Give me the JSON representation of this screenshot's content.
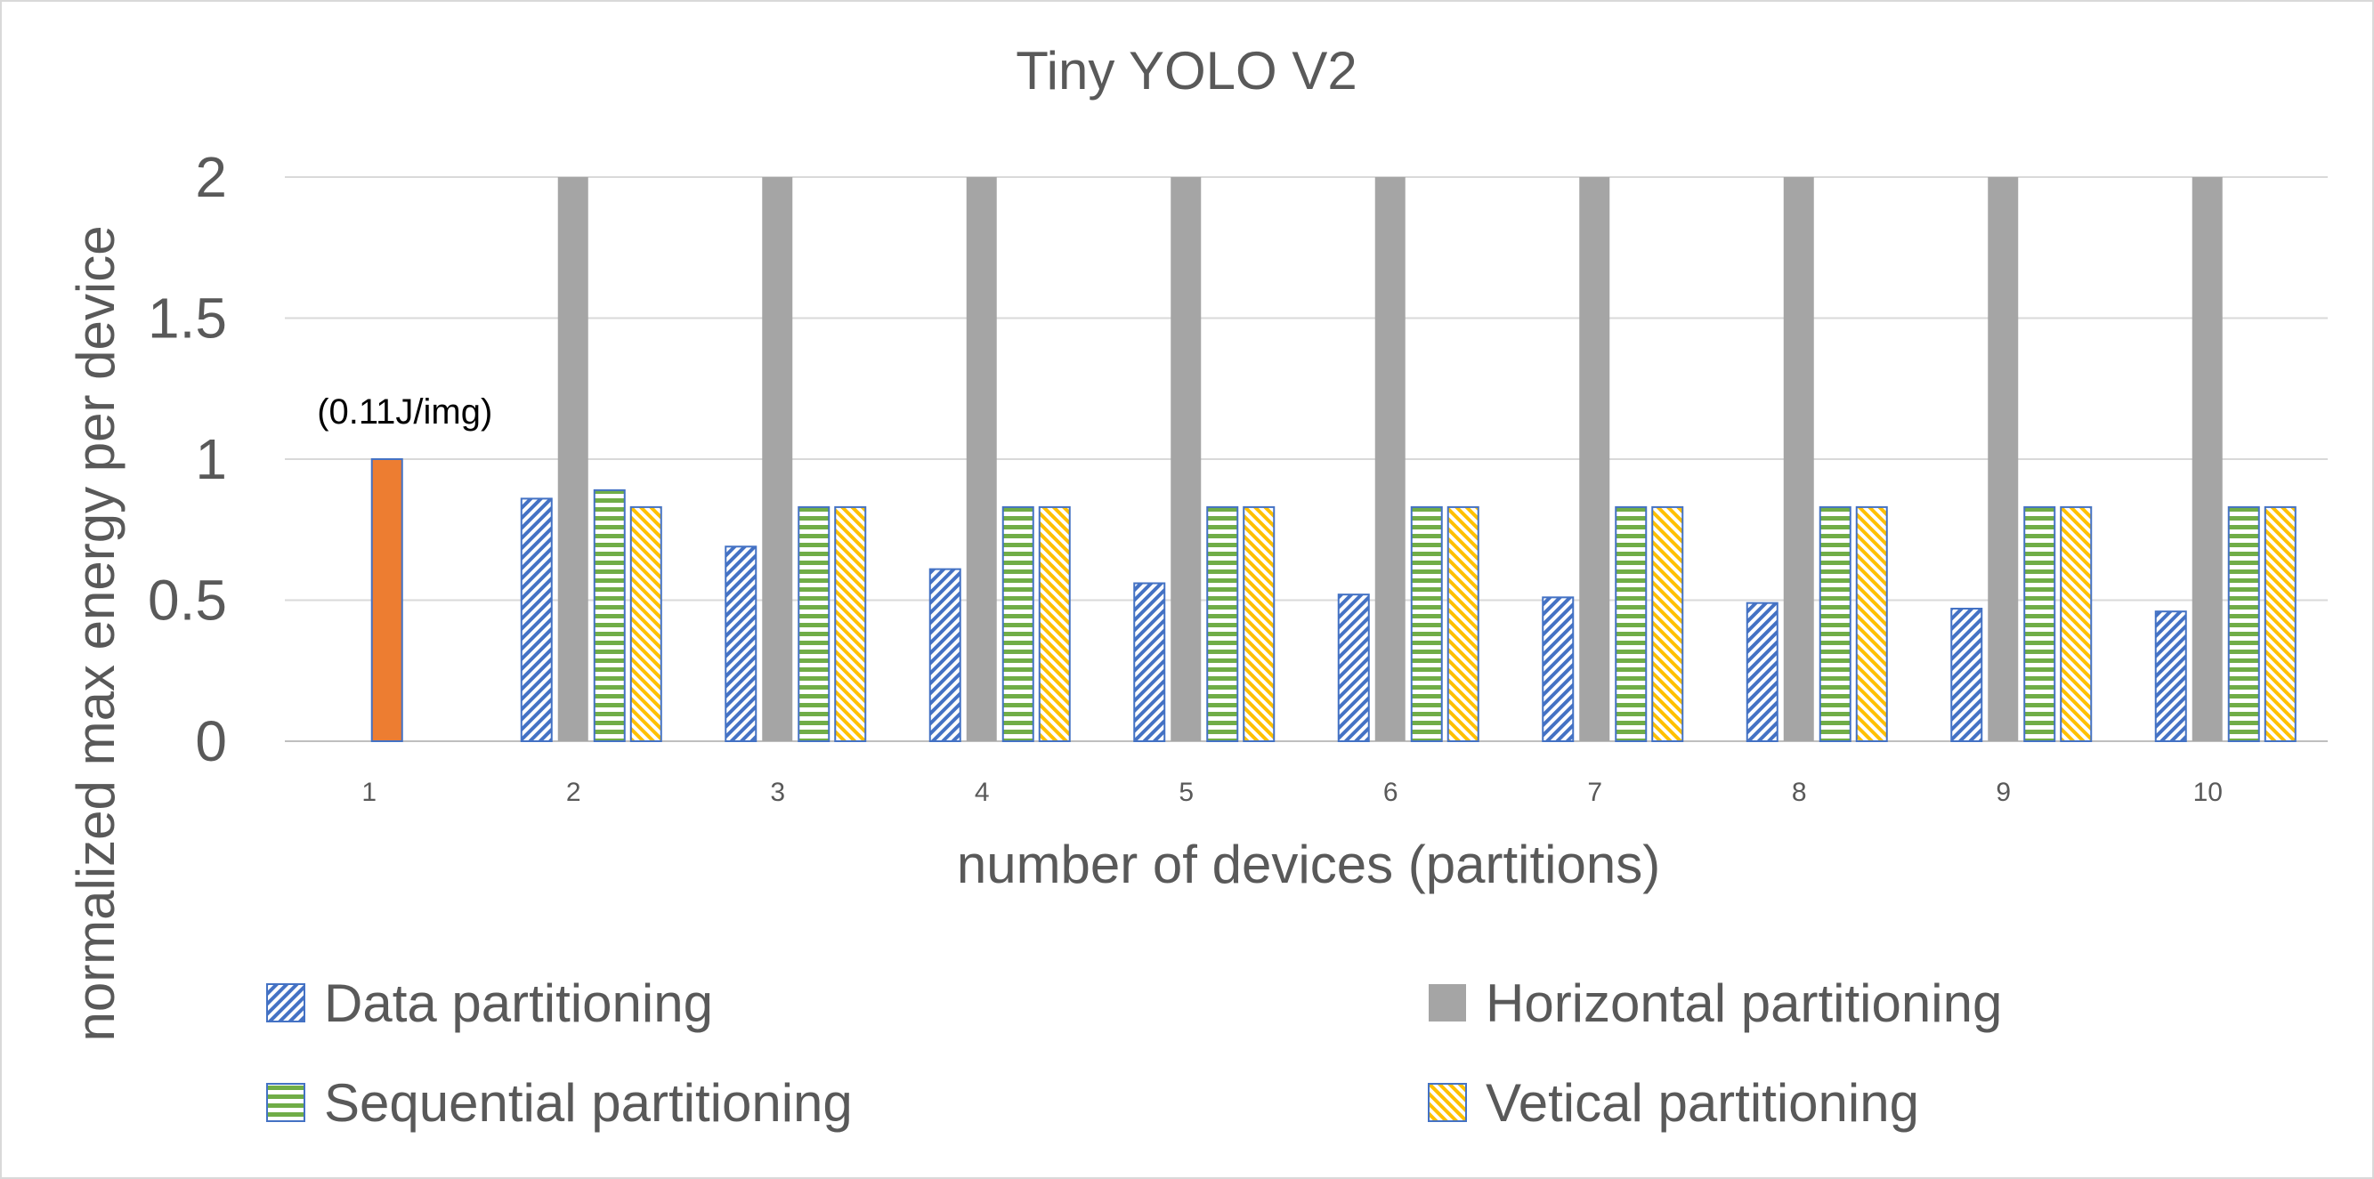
{
  "chart_data": {
    "type": "bar",
    "title": "Tiny YOLO V2",
    "xlabel": "number of devices (partitions)",
    "ylabel": "normalized max energy per device",
    "categories": [
      "1",
      "2",
      "3",
      "4",
      "5",
      "6",
      "7",
      "8",
      "9",
      "10"
    ],
    "ylim": [
      0,
      2
    ],
    "yticks": [
      {
        "value": 0,
        "label": "0"
      },
      {
        "value": 0.5,
        "label": "0.5"
      },
      {
        "value": 1,
        "label": "1"
      },
      {
        "value": 1.5,
        "label": "1.5"
      },
      {
        "value": 2,
        "label": "2"
      }
    ],
    "grid": true,
    "legend_position": "bottom",
    "single_device": {
      "category": "1",
      "value": 1.0,
      "color": "#ED7D31",
      "annotation": "(0.11J/img)"
    },
    "series": [
      {
        "name": "Data partitioning",
        "pattern": "diagonal",
        "color": "#4472C4",
        "values": [
          null,
          0.86,
          0.69,
          0.61,
          0.56,
          0.52,
          0.51,
          0.49,
          0.47,
          0.46
        ]
      },
      {
        "name": "Horizontal partitioning",
        "pattern": "solid",
        "color": "#A5A5A5",
        "values": [
          null,
          2.0,
          2.0,
          2.0,
          2.0,
          2.0,
          2.0,
          2.0,
          2.0,
          2.0
        ]
      },
      {
        "name": "Sequential partitioning",
        "pattern": "horizontal",
        "color": "#70AD47",
        "values": [
          null,
          0.89,
          0.83,
          0.83,
          0.83,
          0.83,
          0.83,
          0.83,
          0.83,
          0.83
        ]
      },
      {
        "name": "Vetical partitioning",
        "pattern": "diagonal-reverse",
        "color": "#FFC000",
        "values": [
          null,
          0.83,
          0.83,
          0.83,
          0.83,
          0.83,
          0.83,
          0.83,
          0.83,
          0.83
        ]
      }
    ],
    "legend_order": [
      0,
      1,
      2,
      3
    ]
  }
}
